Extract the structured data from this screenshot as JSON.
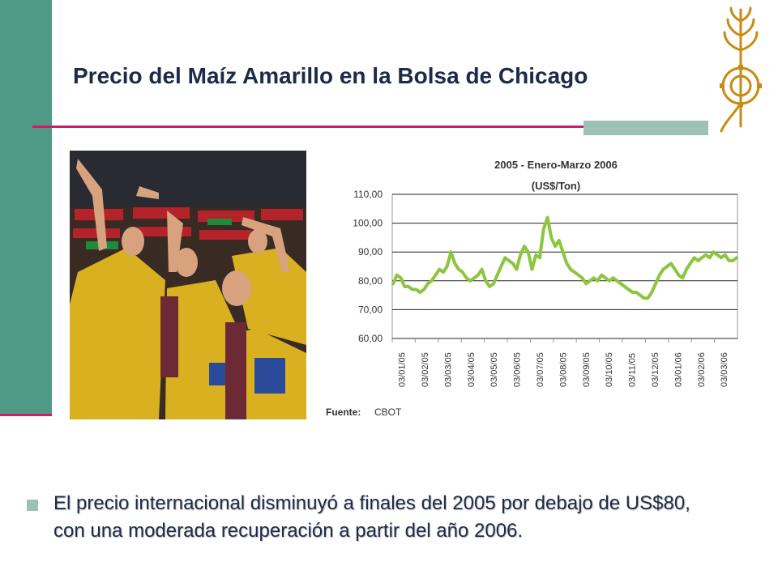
{
  "slide": {
    "title": "Precio del Maíz Amarillo en la Bolsa de Chicago",
    "bullet": "El precio internacional disminuyó a finales del 2005 por debajo de US$80, con una moderada recuperación a partir del año 2006."
  },
  "colors": {
    "sidebar": "#4f9a86",
    "rule": "#cc1f6a",
    "accent": "#9ec1b6",
    "series": "#8cc63f"
  },
  "chart_data": {
    "type": "line",
    "title": "2005 - Enero-Marzo 2006",
    "subtitle": "(US$/Ton)",
    "source_label": "Fuente:",
    "source": "CBOT",
    "ylim": [
      60,
      110
    ],
    "yticks": [
      "110,00",
      "100,00",
      "90,00",
      "80,00",
      "70,00",
      "60,00"
    ],
    "ytick_values": [
      110,
      100,
      90,
      80,
      70,
      60
    ],
    "xticks": [
      "03/01/05",
      "03/02/05",
      "03/03/05",
      "03/04/05",
      "03/05/05",
      "03/06/05",
      "03/07/05",
      "03/08/05",
      "03/09/05",
      "03/10/05",
      "03/11/05",
      "03/12/05",
      "03/01/06",
      "03/02/06",
      "03/03/06"
    ],
    "grid": true,
    "series": [
      {
        "values": [
          79,
          82,
          81,
          78,
          78,
          77,
          77,
          76,
          77,
          79,
          80,
          82,
          84,
          83,
          85,
          90,
          86,
          84,
          83,
          81,
          80,
          81,
          82,
          84,
          80,
          78,
          79,
          82,
          85,
          88,
          87,
          86,
          84,
          89,
          92,
          90,
          84,
          89,
          88,
          98,
          102,
          95,
          92,
          94,
          90,
          86,
          84,
          83,
          82,
          81,
          79,
          80,
          81,
          80,
          82,
          81,
          80,
          81,
          80,
          79,
          78,
          77,
          76,
          76,
          75,
          74,
          74,
          76,
          79,
          82,
          84,
          85,
          86,
          84,
          82,
          81,
          84,
          86,
          88,
          87,
          88,
          89,
          88,
          90,
          89,
          88,
          89,
          87,
          87,
          88
        ]
      }
    ]
  }
}
